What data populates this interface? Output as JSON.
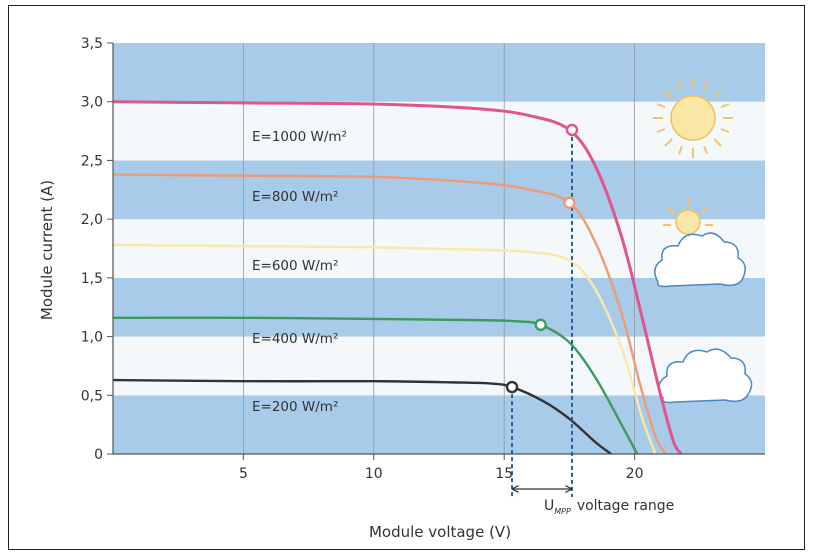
{
  "chart_data": {
    "type": "line",
    "xlabel": "Module voltage (V)",
    "ylabel": "Module current (A)",
    "xlim": [
      0,
      25
    ],
    "ylim": [
      0,
      3.5
    ],
    "x_ticks": [
      "5",
      "10",
      "15",
      "20"
    ],
    "y_ticks": [
      "0",
      "0,5",
      "1,0",
      "1,5",
      "2,0",
      "2,5",
      "3,0",
      "3,5"
    ],
    "grid": true,
    "annotation": {
      "subscript_base": "U",
      "subscript": "MPP",
      "text": "voltage range"
    },
    "series": [
      {
        "name": "E=1000 W/m²",
        "color": "#e0558a",
        "x": [
          0,
          5,
          10,
          14,
          16,
          17.5,
          18.5,
          19.5,
          20.3,
          21,
          21.5,
          21.8
        ],
        "y": [
          3.0,
          2.99,
          2.98,
          2.94,
          2.88,
          2.76,
          2.45,
          1.85,
          1.15,
          0.5,
          0.1,
          0
        ]
      },
      {
        "name": "E=800 W/m²",
        "color": "#ee9a72",
        "x": [
          0,
          5,
          10,
          14,
          16,
          17.5,
          18.5,
          19.5,
          20.2,
          20.8,
          21.2
        ],
        "y": [
          2.38,
          2.37,
          2.36,
          2.31,
          2.25,
          2.14,
          1.8,
          1.2,
          0.6,
          0.15,
          0
        ]
      },
      {
        "name": "E=600 W/m²",
        "color": "#f8e9a8",
        "x": [
          0,
          5,
          10,
          14,
          16,
          17.5,
          18.5,
          19.5,
          20.3,
          20.8
        ],
        "y": [
          1.78,
          1.77,
          1.76,
          1.74,
          1.72,
          1.65,
          1.4,
          0.9,
          0.3,
          0
        ]
      },
      {
        "name": "E=400 W/m²",
        "color": "#3d9a5e",
        "x": [
          0,
          5,
          10,
          14,
          15.5,
          16.4,
          17.5,
          18.5,
          19.5,
          20.1
        ],
        "y": [
          1.16,
          1.16,
          1.15,
          1.14,
          1.13,
          1.1,
          0.95,
          0.65,
          0.25,
          0
        ]
      },
      {
        "name": "E=200 W/m²",
        "color": "#333333",
        "x": [
          0,
          5,
          10,
          13,
          14.5,
          15.3,
          16.5,
          17.5,
          18.5,
          19.1
        ],
        "y": [
          0.63,
          0.62,
          0.62,
          0.61,
          0.6,
          0.57,
          0.45,
          0.3,
          0.1,
          0
        ]
      }
    ],
    "mpp_points": [
      {
        "x": 17.6,
        "y": 2.76,
        "color": "#e0558a"
      },
      {
        "x": 17.5,
        "y": 2.14,
        "color": "#ee9a72"
      },
      {
        "x": 16.4,
        "y": 1.1,
        "color": "#3d9a5e"
      },
      {
        "x": 15.3,
        "y": 0.57,
        "color": "#333333"
      }
    ],
    "mpp_range": [
      15.3,
      17.6
    ]
  }
}
